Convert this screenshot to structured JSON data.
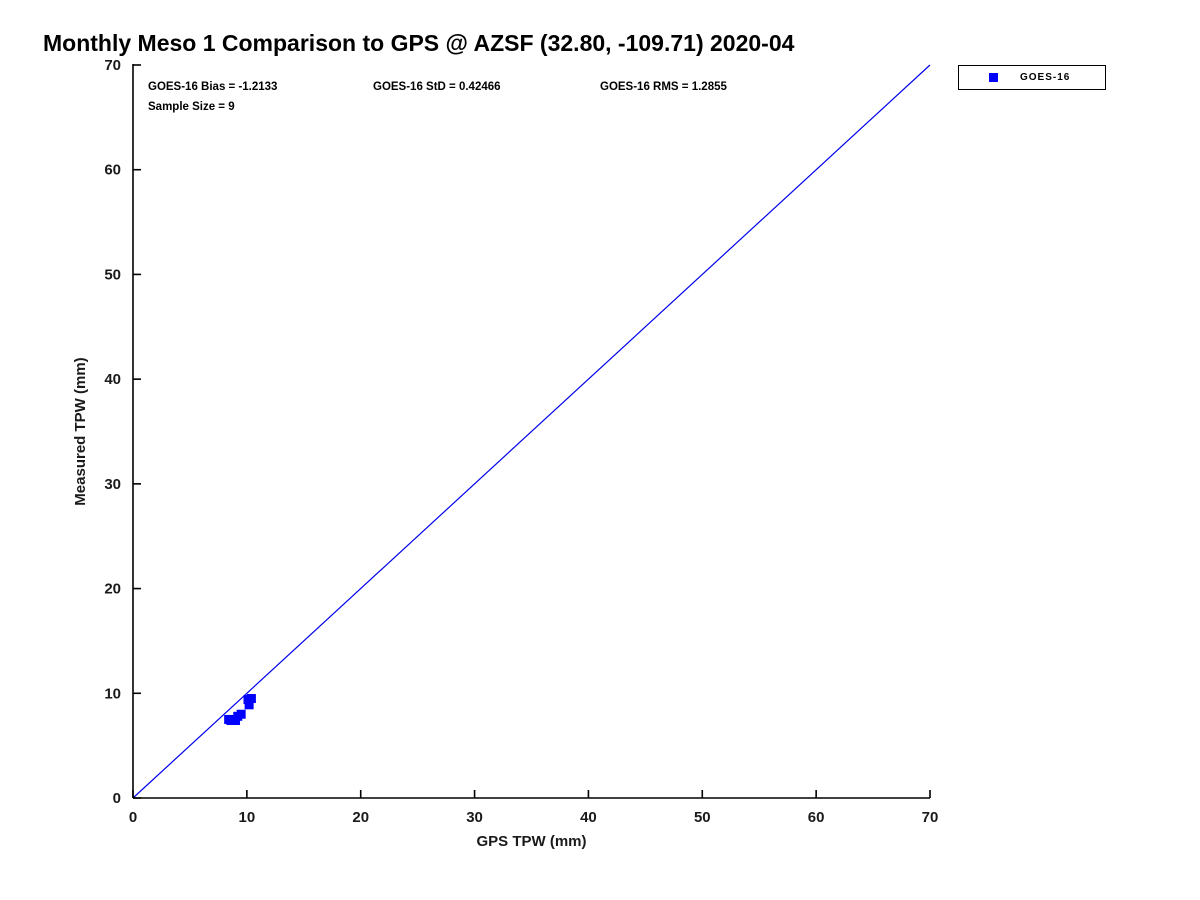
{
  "chart": {
    "title": "Monthly Meso 1 Comparison to GPS @ AZSF (32.80, -109.71) 2020-04",
    "stats": {
      "bias": "GOES-16 Bias = -1.2133",
      "std": "GOES-16 StD = 0.42466",
      "rms": "GOES-16 RMS = 1.2855",
      "sample_size": "Sample Size = 9"
    },
    "legend": {
      "label": "GOES-16"
    }
  },
  "chart_data": {
    "type": "scatter",
    "title": "Monthly Meso 1 Comparison to GPS @ AZSF (32.80, -109.71) 2020-04",
    "xlabel": "GPS TPW (mm)",
    "ylabel": "Measured TPW (mm)",
    "xlim": [
      0,
      70
    ],
    "ylim": [
      0,
      70
    ],
    "xticks": [
      0,
      10,
      20,
      30,
      40,
      50,
      60,
      70
    ],
    "yticks": [
      0,
      10,
      20,
      30,
      40,
      50,
      60,
      70
    ],
    "grid": false,
    "legend_position": "outside-top-right",
    "colors": {
      "marker": "#0000ff",
      "line": "#0000ee",
      "axis": "#000000",
      "tick_text": "#1a1a1a"
    },
    "reference_line": {
      "from": [
        0,
        0
      ],
      "to": [
        70,
        70
      ],
      "color": "#0000ee"
    },
    "series": [
      {
        "name": "GOES-16",
        "marker": "square",
        "color": "#0000ff",
        "points": [
          [
            8.4,
            7.5
          ],
          [
            8.6,
            7.4
          ],
          [
            8.8,
            7.5
          ],
          [
            9.0,
            7.4
          ],
          [
            9.2,
            7.8
          ],
          [
            9.5,
            8.0
          ],
          [
            10.1,
            9.4
          ],
          [
            10.2,
            8.9
          ],
          [
            10.4,
            9.5
          ]
        ]
      }
    ]
  }
}
